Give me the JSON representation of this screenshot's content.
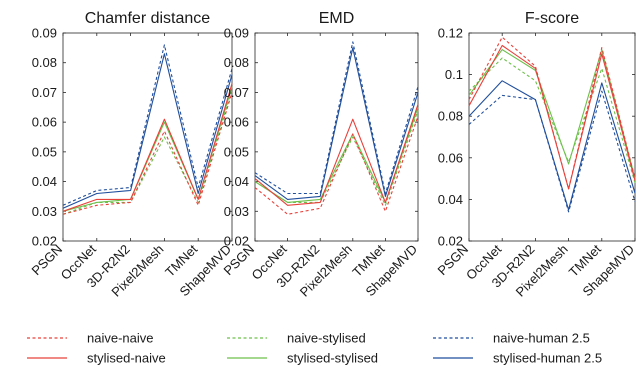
{
  "chart_data": [
    {
      "type": "line",
      "title": "Chamfer distance",
      "categories": [
        "PSGN",
        "OccNet",
        "3D-R2N2",
        "Pixel2Mesh",
        "TMNet",
        "ShapeMVD"
      ],
      "ylim": [
        0.02,
        0.09
      ],
      "yticks": [
        "0.02",
        "0.03",
        "0.04",
        "0.05",
        "0.06",
        "0.07",
        "0.08",
        "0.09"
      ],
      "series": [
        {
          "name": "naive-naive",
          "values": [
            0.029,
            0.032,
            0.033,
            0.057,
            0.032,
            0.07
          ]
        },
        {
          "name": "stylised-naive",
          "values": [
            0.03,
            0.034,
            0.034,
            0.061,
            0.034,
            0.073
          ]
        },
        {
          "name": "naive-stylised",
          "values": [
            0.029,
            0.033,
            0.033,
            0.055,
            0.033,
            0.071
          ]
        },
        {
          "name": "stylised-stylised",
          "values": [
            0.03,
            0.033,
            0.034,
            0.06,
            0.034,
            0.072
          ]
        },
        {
          "name": "naive-human 2.5",
          "values": [
            0.032,
            0.037,
            0.038,
            0.086,
            0.038,
            0.078
          ]
        },
        {
          "name": "stylised-human 2.5",
          "values": [
            0.031,
            0.036,
            0.037,
            0.083,
            0.036,
            0.076
          ]
        }
      ]
    },
    {
      "type": "line",
      "title": "EMD",
      "categories": [
        "PSGN",
        "OccNet",
        "3D-R2N2",
        "Pixel2Mesh",
        "TMNet",
        "ShapeMVD"
      ],
      "ylim": [
        0.02,
        0.09
      ],
      "yticks": [
        "0.02",
        "0.03",
        "0.04",
        "0.05",
        "0.06",
        "0.07",
        "0.08",
        "0.09"
      ],
      "series": [
        {
          "name": "naive-naive",
          "values": [
            0.038,
            0.029,
            0.031,
            0.056,
            0.03,
            0.062
          ]
        },
        {
          "name": "stylised-naive",
          "values": [
            0.041,
            0.032,
            0.033,
            0.061,
            0.033,
            0.066
          ]
        },
        {
          "name": "naive-stylised",
          "values": [
            0.04,
            0.033,
            0.033,
            0.055,
            0.032,
            0.064
          ]
        },
        {
          "name": "stylised-stylised",
          "values": [
            0.04,
            0.033,
            0.034,
            0.056,
            0.033,
            0.065
          ]
        },
        {
          "name": "naive-human 2.5",
          "values": [
            0.043,
            0.036,
            0.036,
            0.087,
            0.036,
            0.072
          ]
        },
        {
          "name": "stylised-human 2.5",
          "values": [
            0.042,
            0.034,
            0.035,
            0.085,
            0.035,
            0.07
          ]
        }
      ]
    },
    {
      "type": "line",
      "title": "F-score",
      "categories": [
        "PSGN",
        "OccNet",
        "3D-R2N2",
        "Pixel2Mesh",
        "TMNet",
        "ShapeMVD"
      ],
      "ylim": [
        0.02,
        0.12
      ],
      "yticks": [
        "0.02",
        "0.04",
        "0.06",
        "0.08",
        "0.1",
        "0.12"
      ],
      "series": [
        {
          "name": "naive-naive",
          "values": [
            0.088,
            0.118,
            0.104,
            0.045,
            0.113,
            0.05
          ]
        },
        {
          "name": "stylised-naive",
          "values": [
            0.085,
            0.114,
            0.103,
            0.045,
            0.11,
            0.049
          ]
        },
        {
          "name": "naive-stylised",
          "values": [
            0.092,
            0.108,
            0.097,
            0.058,
            0.103,
            0.048
          ]
        },
        {
          "name": "stylised-stylised",
          "values": [
            0.09,
            0.112,
            0.102,
            0.057,
            0.112,
            0.05
          ]
        },
        {
          "name": "naive-human 2.5",
          "values": [
            0.076,
            0.09,
            0.088,
            0.034,
            0.092,
            0.039
          ]
        },
        {
          "name": "stylised-human 2.5",
          "values": [
            0.08,
            0.097,
            0.088,
            0.035,
            0.096,
            0.043
          ]
        }
      ]
    }
  ],
  "series_styles": [
    {
      "name": "naive-naive",
      "color": "#e8413a",
      "dash": "dotted"
    },
    {
      "name": "stylised-naive",
      "color": "#e8413a",
      "dash": "solid"
    },
    {
      "name": "naive-stylised",
      "color": "#6cc04a",
      "dash": "dotted"
    },
    {
      "name": "stylised-stylised",
      "color": "#6cc04a",
      "dash": "solid"
    },
    {
      "name": "naive-human 2.5",
      "color": "#1f4e9c",
      "dash": "dotted"
    },
    {
      "name": "stylised-human 2.5",
      "color": "#1f4e9c",
      "dash": "solid"
    }
  ],
  "legend": {
    "placement": "bottom",
    "items": [
      "naive-naive",
      "naive-stylised",
      "naive-human 2.5",
      "stylised-naive",
      "stylised-stylised",
      "stylised-human 2.5"
    ]
  },
  "grid": false
}
